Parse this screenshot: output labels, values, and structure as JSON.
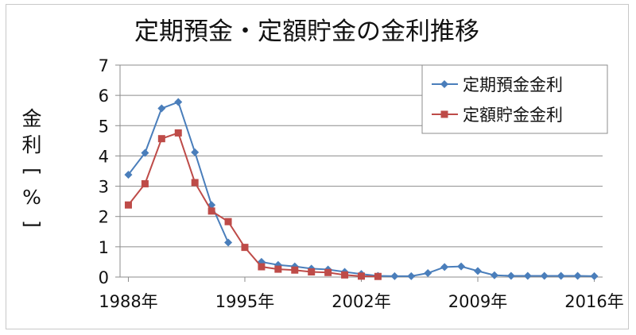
{
  "chart_data": {
    "type": "line",
    "title": "定期預金・定額貯金の金利推移",
    "ylabel": "金利[%]",
    "xlabel": "",
    "xlim": [
      1987.5,
      2016.5
    ],
    "ylim": [
      0,
      7
    ],
    "y_ticks": [
      0,
      1,
      2,
      3,
      4,
      5,
      6,
      7
    ],
    "x_ticks": [
      1988,
      1995,
      2002,
      2009,
      2016
    ],
    "x_tick_labels": [
      "1988年",
      "1995年",
      "2002年",
      "2009年",
      "2016年"
    ],
    "grid": true,
    "legend_position": "top-right",
    "series": [
      {
        "name": "定期預金金利",
        "color": "#4a7ebb",
        "marker": "diamond",
        "x": [
          1988,
          1989,
          1990,
          1991,
          1992,
          1993,
          1994,
          1995,
          1996,
          1997,
          1998,
          1999,
          2000,
          2001,
          2002,
          2003,
          2004,
          2005,
          2006,
          2007,
          2008,
          2009,
          2010,
          2011,
          2012,
          2013,
          2014,
          2015,
          2016
        ],
        "values": [
          3.38,
          4.1,
          5.57,
          5.78,
          4.12,
          2.38,
          1.14,
          null,
          0.5,
          0.4,
          0.35,
          0.28,
          0.25,
          0.17,
          0.1,
          0.04,
          0.03,
          0.03,
          0.13,
          0.33,
          0.35,
          0.2,
          0.06,
          0.04,
          0.04,
          0.04,
          0.04,
          0.04,
          0.03
        ]
      },
      {
        "name": "定額貯金金利",
        "color": "#be4b48",
        "marker": "square",
        "x": [
          1988,
          1989,
          1990,
          1991,
          1992,
          1993,
          1994,
          1995,
          1996,
          1997,
          1998,
          1999,
          2000,
          2001,
          2002,
          2003
        ],
        "values": [
          2.38,
          3.08,
          4.57,
          4.76,
          3.12,
          2.18,
          1.83,
          0.98,
          0.34,
          0.26,
          0.23,
          0.17,
          0.15,
          0.07,
          0.03,
          0.02
        ]
      }
    ]
  }
}
